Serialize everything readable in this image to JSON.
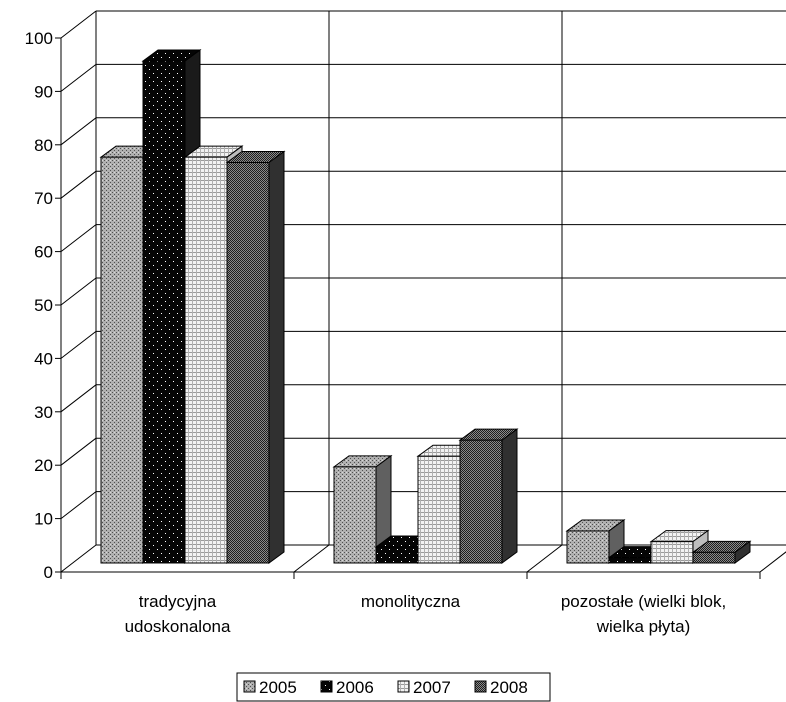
{
  "chart_data": {
    "type": "bar",
    "three_d": true,
    "title": "",
    "xlabel": "",
    "ylabel": "",
    "ylim": [
      0,
      100
    ],
    "yticks": [
      "0",
      "10",
      "20",
      "30",
      "40",
      "50",
      "60",
      "70",
      "80",
      "90",
      "100"
    ],
    "grid": true,
    "legend_position": "bottom",
    "categories": [
      [
        "tradycyjna",
        "udoskonalona"
      ],
      [
        "monolityczna"
      ],
      [
        "pozostałe (wielki blok,",
        "wielka płyta)"
      ]
    ],
    "series": [
      {
        "name": "2005",
        "values": [
          76,
          18,
          6
        ],
        "pattern": "fine-gray"
      },
      {
        "name": "2006",
        "values": [
          94,
          3,
          1
        ],
        "pattern": "black-dots"
      },
      {
        "name": "2007",
        "values": [
          76,
          20,
          4
        ],
        "pattern": "light-grid"
      },
      {
        "name": "2008",
        "values": [
          75,
          23,
          2
        ],
        "pattern": "dark-checker"
      }
    ]
  }
}
